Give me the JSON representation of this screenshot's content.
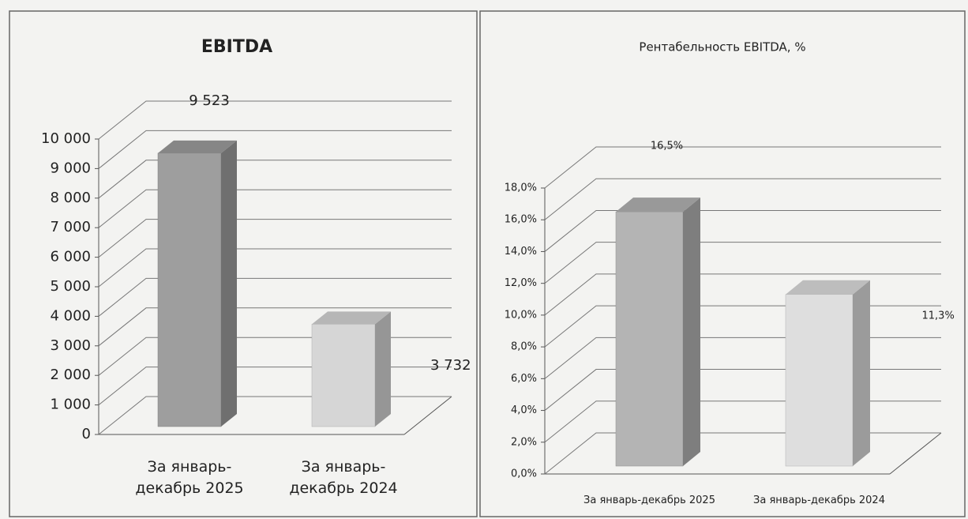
{
  "chart_data": [
    {
      "type": "bar3d",
      "title": "EBITDA",
      "categories": [
        "За январь-декабрь 2025",
        "За январь-декабрь 2024"
      ],
      "values": [
        9523,
        3732
      ],
      "value_labels": [
        "9 523",
        "3 732"
      ],
      "colors": [
        "#9e9e9e",
        "#d6d6d6"
      ],
      "ylim": [
        0,
        10000
      ],
      "yticks": [
        0,
        {
          "value": 1000,
          "label": "1 000"
        },
        {
          "value": 2000,
          "label": "2 000"
        },
        {
          "value": 3000,
          "label": "3 000"
        },
        {
          "value": 4000,
          "label": "4 000"
        },
        {
          "value": 5000,
          "label": "5 000"
        },
        {
          "value": 6000,
          "label": "6 000"
        },
        {
          "value": 7000,
          "label": "7 000"
        },
        {
          "value": 8000,
          "label": "8 000"
        },
        {
          "value": 9000,
          "label": "9 000"
        },
        {
          "value": 10000,
          "label": "10 000"
        }
      ],
      "grid": true
    },
    {
      "type": "bar3d",
      "title": "Рентабельность EBITDA, %",
      "categories": [
        "За январь-декабрь 2025",
        "За январь-декабрь 2024"
      ],
      "values": [
        16.5,
        11.3
      ],
      "value_labels": [
        "16,5%",
        "11,3%"
      ],
      "colors": [
        "#b4b4b4",
        "#dedede"
      ],
      "ylim": [
        0,
        18
      ],
      "yticks": [
        {
          "value": 0,
          "label": "0,0%"
        },
        {
          "value": 2,
          "label": "2,0%"
        },
        {
          "value": 4,
          "label": "4,0%"
        },
        {
          "value": 6,
          "label": "6,0%"
        },
        {
          "value": 8,
          "label": "8,0%"
        },
        {
          "value": 10,
          "label": "10,0%"
        },
        {
          "value": 12,
          "label": "12,0%"
        },
        {
          "value": 14,
          "label": "14,0%"
        },
        {
          "value": 16,
          "label": "16,0%"
        },
        {
          "value": 18,
          "label": "18,0%"
        }
      ],
      "grid": true
    }
  ]
}
